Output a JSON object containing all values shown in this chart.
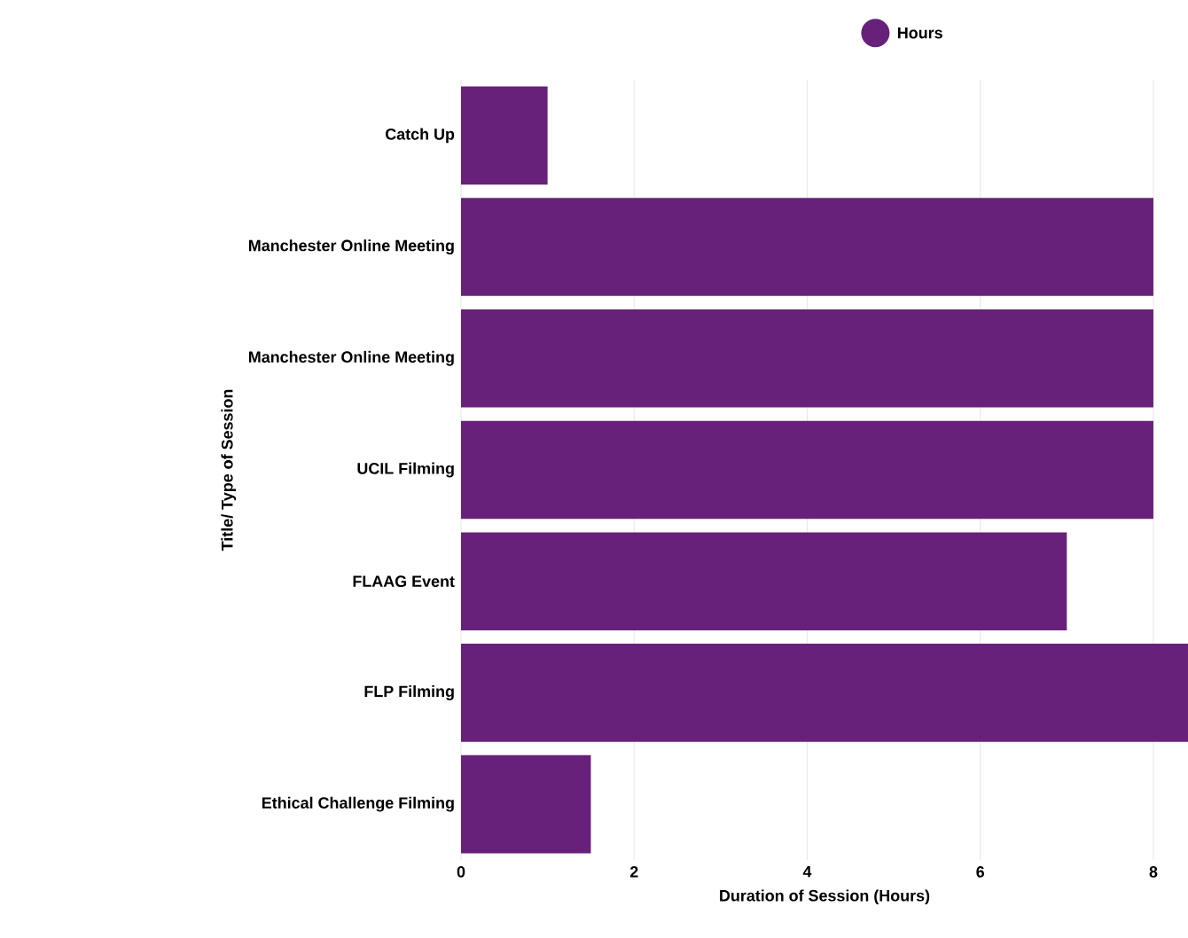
{
  "chart_data": {
    "type": "bar",
    "orientation": "horizontal",
    "xlabel": "Duration of Session (Hours)",
    "ylabel": "Title/ Type of Session",
    "categories": [
      "Catch Up",
      "Manchester Online Meeting",
      "Manchester Online Meeting",
      "UCIL Filming",
      "FLAAG Event",
      "FLP Filming",
      "Ethical Challenge Filming"
    ],
    "series": [
      {
        "name": "Hours",
        "color": "#68217a",
        "values": [
          1,
          8,
          8,
          8,
          7,
          8.4,
          1.5
        ]
      }
    ],
    "xlim": [
      0,
      8.4
    ],
    "xticks": [
      0,
      2,
      4,
      6,
      8
    ],
    "grid": "x",
    "legend": "top"
  }
}
